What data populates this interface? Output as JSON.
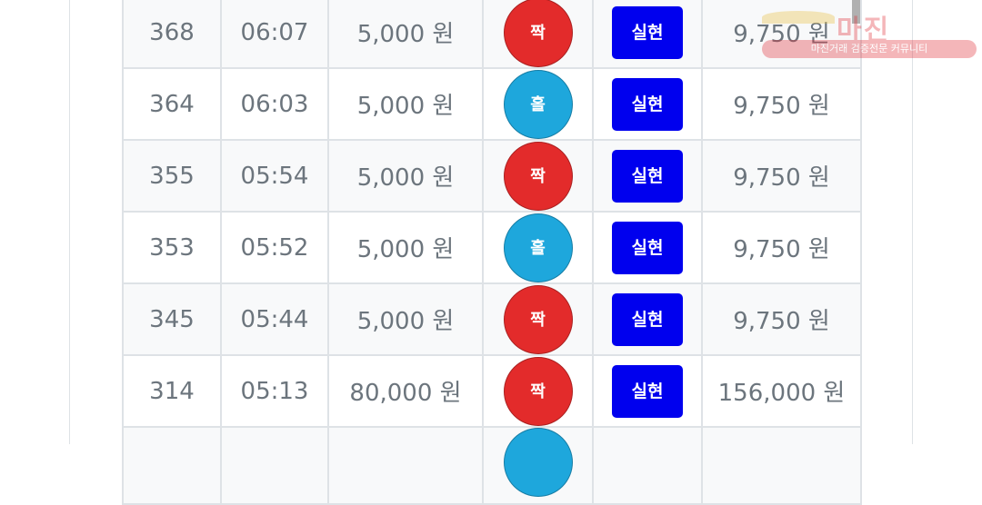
{
  "rows": [
    {
      "round": "368",
      "time": "06:07",
      "bet": "5,000 원",
      "pick": "짝",
      "pick_color": "#e32b2b",
      "result": "실현",
      "payout": "9,750 원"
    },
    {
      "round": "364",
      "time": "06:03",
      "bet": "5,000 원",
      "pick": "홀",
      "pick_color": "#1ea7dc",
      "result": "실현",
      "payout": "9,750 원"
    },
    {
      "round": "355",
      "time": "05:54",
      "bet": "5,000 원",
      "pick": "짝",
      "pick_color": "#e32b2b",
      "result": "실현",
      "payout": "9,750 원"
    },
    {
      "round": "353",
      "time": "05:52",
      "bet": "5,000 원",
      "pick": "홀",
      "pick_color": "#1ea7dc",
      "result": "실현",
      "payout": "9,750 원"
    },
    {
      "round": "345",
      "time": "05:44",
      "bet": "5,000 원",
      "pick": "짝",
      "pick_color": "#e32b2b",
      "result": "실현",
      "payout": "9,750 원"
    },
    {
      "round": "314",
      "time": "05:13",
      "bet": "80,000 원",
      "pick": "짝",
      "pick_color": "#e32b2b",
      "result": "실현",
      "payout": "156,000 원"
    },
    {
      "round": "",
      "time": "",
      "bet": "",
      "pick": "",
      "pick_color": "#1ea7dc",
      "result": "",
      "payout": ""
    }
  ],
  "watermark": {
    "title": "마진",
    "sub": "마진거래 검증전문 커뮤니티"
  },
  "colors": {
    "button": "#0000ee",
    "text": "#6c757d",
    "border": "#dee2e6"
  }
}
